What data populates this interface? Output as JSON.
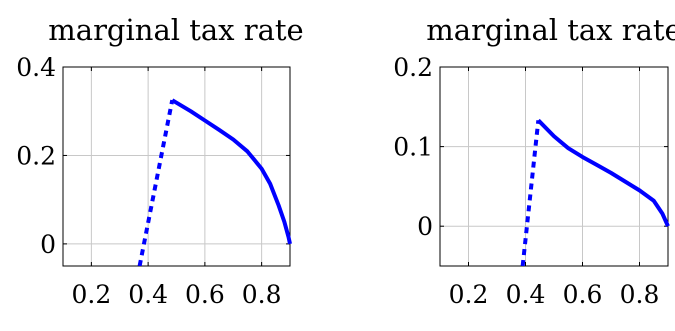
{
  "chart_data": [
    {
      "type": "line",
      "title": "marginal tax rate",
      "xlabel": "",
      "ylabel": "",
      "xlim": [
        0.1,
        0.9
      ],
      "ylim": [
        -0.05,
        0.4
      ],
      "xticks": [
        0.2,
        0.4,
        0.6,
        0.8
      ],
      "xtick_labels": [
        "0.2",
        "0.4",
        "0.6",
        "0.8"
      ],
      "yticks": [
        0,
        0.2,
        0.4
      ],
      "ytick_labels": [
        "0",
        "0.2",
        "0.4"
      ],
      "grid": true,
      "color": "#0000ff",
      "series": [
        {
          "style": "dashed",
          "x": [
            0.37,
            0.485
          ],
          "y": [
            -0.05,
            0.325
          ]
        },
        {
          "style": "solid",
          "x": [
            0.485,
            0.55,
            0.6,
            0.65,
            0.7,
            0.75,
            0.8,
            0.83,
            0.86,
            0.88,
            0.895,
            0.9
          ],
          "y": [
            0.325,
            0.3,
            0.279,
            0.258,
            0.236,
            0.209,
            0.17,
            0.136,
            0.087,
            0.05,
            0.015,
            0.0
          ]
        }
      ]
    },
    {
      "type": "line",
      "title": "marginal tax rate",
      "xlabel": "",
      "ylabel": "",
      "xlim": [
        0.1,
        0.9
      ],
      "ylim": [
        -0.05,
        0.2
      ],
      "xticks": [
        0.2,
        0.4,
        0.6,
        0.8
      ],
      "xtick_labels": [
        "0.2",
        "0.4",
        "0.6",
        "0.8"
      ],
      "yticks": [
        0,
        0.1,
        0.2
      ],
      "ytick_labels": [
        "0",
        "0.1",
        "0.2"
      ],
      "grid": true,
      "color": "#0000ff",
      "series": [
        {
          "style": "dashed",
          "x": [
            0.39,
            0.445
          ],
          "y": [
            -0.05,
            0.133
          ]
        },
        {
          "style": "solid",
          "x": [
            0.445,
            0.5,
            0.55,
            0.6,
            0.65,
            0.7,
            0.75,
            0.8,
            0.85,
            0.88,
            0.9
          ],
          "y": [
            0.133,
            0.113,
            0.098,
            0.087,
            0.077,
            0.067,
            0.056,
            0.045,
            0.032,
            0.016,
            0.0
          ]
        }
      ]
    }
  ]
}
